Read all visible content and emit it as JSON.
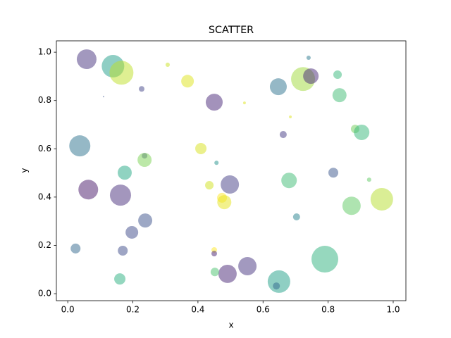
{
  "chart_data": {
    "type": "scatter",
    "title": "SCATTER",
    "x_label": "x",
    "y_label": "y",
    "xlim": [
      -0.035,
      1.039
    ],
    "ylim": [
      -0.029,
      1.047
    ],
    "xticks": [
      {
        "value": 0,
        "label": "0.0"
      },
      0.2,
      0.4,
      0.6,
      0.8,
      {
        "value": 1,
        "label": "1.0"
      }
    ],
    "yticks": [
      {
        "value": 0,
        "label": "0.0"
      },
      0.2,
      0.4,
      0.6,
      0.8,
      {
        "value": 1,
        "label": "1.0"
      }
    ],
    "alpha": 0.5,
    "x": [
      0.058,
      0.139,
      0.165,
      0.307,
      0.227,
      0.368,
      0.45,
      0.11,
      0.543,
      0.647,
      0.723,
      0.747,
      0.74,
      0.829,
      0.835,
      0.684,
      0.662,
      0.883,
      0.903,
      0.037,
      0.409,
      0.236,
      0.236,
      0.175,
      0.457,
      0.816,
      0.926,
      0.68,
      0.435,
      0.498,
      0.063,
      0.162,
      0.474,
      0.481,
      0.872,
      0.965,
      0.703,
      0.238,
      0.197,
      0.024,
      0.169,
      0.45,
      0.45,
      0.79,
      0.552,
      0.491,
      0.452,
      0.16,
      0.649,
      0.641
    ],
    "series": [
      {
        "values": [
          0.971,
          0.942,
          0.915,
          0.948,
          0.848,
          0.88,
          0.793,
          0.816,
          0.79,
          0.857,
          0.889,
          0.901,
          0.977,
          0.907,
          0.822,
          0.732,
          0.659,
          0.682,
          0.668,
          0.612,
          0.601,
          0.571,
          0.554,
          0.501,
          0.542,
          0.501,
          0.472,
          0.469,
          0.449,
          0.452,
          0.431,
          0.408,
          0.397,
          0.379,
          0.364,
          0.391,
          0.318,
          0.303,
          0.254,
          0.187,
          0.178,
          0.181,
          0.166,
          0.143,
          0.114,
          0.082,
          0.09,
          0.061,
          0.05,
          0.032
        ],
        "sizes": [
          406,
          531,
          599,
          19,
          33,
          168,
          299,
          2,
          8,
          299,
          599,
          251,
          19,
          75,
          207,
          8,
          52,
          75,
          251,
          467,
          133,
          33,
          207,
          207,
          19,
          102,
          19,
          251,
          75,
          350,
          406,
          467,
          102,
          207,
          350,
          531,
          52,
          207,
          168,
          102,
          102,
          33,
          33,
          749,
          350,
          350,
          75,
          133,
          531,
          52
        ],
        "colors": [
          "#46327e",
          "#1f9e89",
          "#bddf26",
          "#cae11f",
          "#414487",
          "#dde318",
          "#482677",
          "#3b528b",
          "#dde318",
          "#2c728e",
          "#a0da39",
          "#482878",
          "#2a788e",
          "#35b779",
          "#3fbc73",
          "#dde318",
          "#443983",
          "#6ece58",
          "#35b779",
          "#2c728e",
          "#d8e219",
          "#404688",
          "#7ad151",
          "#22a884",
          "#21918c",
          "#39568c",
          "#5ec962",
          "#3dbc74",
          "#d0e11c",
          "#433e85",
          "#481769",
          "#472d7b",
          "#fde725",
          "#e5e419",
          "#5ec962",
          "#b5de2b",
          "#26828e",
          "#3b528b",
          "#3e4a89",
          "#31688e",
          "#3e4c8a",
          "#fde725",
          "#481f70",
          "#2db27d",
          "#46337f",
          "#482576",
          "#4ac16d",
          "#29af7f",
          "#1fa088",
          "#31688e"
        ]
      }
    ]
  }
}
